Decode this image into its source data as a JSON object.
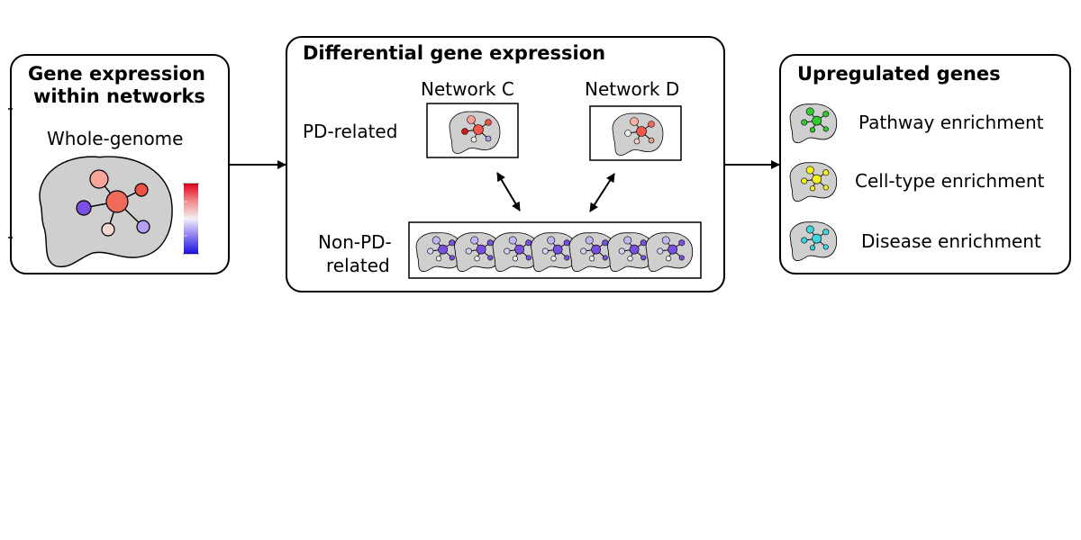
{
  "panels": {
    "left": {
      "title_line1": "Gene expression",
      "title_line2": "within networks",
      "subtitle": "Whole-genome"
    },
    "middle": {
      "title": "Differential gene expression",
      "network_c_label": "Network C",
      "network_d_label": "Network D",
      "pd_related_label": "PD-related",
      "non_pd_label_line1": "Non-PD-",
      "non_pd_label_line2": "related"
    },
    "right": {
      "title": "Upregulated genes",
      "items": [
        {
          "label": "Pathway enrichment",
          "node_color": "#2ecc2e"
        },
        {
          "label": "Cell-type enrichment",
          "node_color": "#f2f21a"
        },
        {
          "label": "Disease enrichment",
          "node_color": "#3fd4e0"
        }
      ]
    }
  },
  "colors": {
    "brain_fill": "#cfcfcf",
    "colorbar_high": "#e0001a",
    "colorbar_low": "#1a10e0",
    "non_pd_node": "#7a4fe0"
  }
}
